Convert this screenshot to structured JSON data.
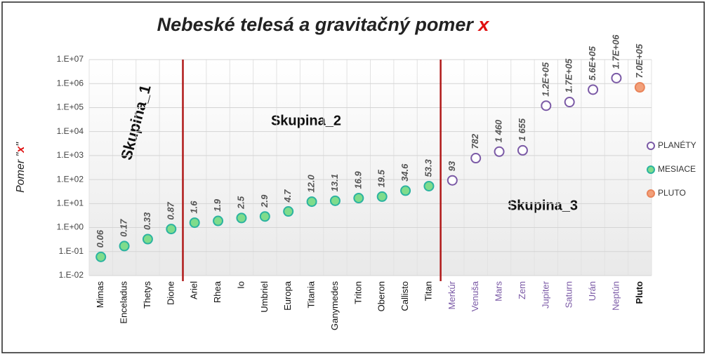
{
  "chart_data": {
    "type": "scatter",
    "title": [
      "Nebeské telesá a gravitačný pomer",
      "x"
    ],
    "y_label": [
      "Pomer \"",
      "x",
      "\""
    ],
    "log_scale": true,
    "grid": true,
    "legend": "right",
    "categories": [
      "Mimas",
      "Enceladus",
      "Thetys",
      "Dione",
      "Ariel",
      "Rhea",
      "Io",
      "Umbriel",
      "Europa",
      "Titania",
      "Ganymedes",
      "Triton",
      "Oberon",
      "Callisto",
      "Titan",
      "Merkúr",
      "Venuša",
      "Mars",
      "Zem",
      "Jupiter",
      "Saturn",
      "Urán",
      "Neptún",
      "Pluto"
    ],
    "ylim": [
      0.01,
      10000000
    ],
    "yticks": [
      {
        "value": 0.01,
        "label": "1.E-02"
      },
      {
        "value": 0.1,
        "label": "1.E-01"
      },
      {
        "value": 1,
        "label": "1.E+00"
      },
      {
        "value": 10,
        "label": "1.E+01"
      },
      {
        "value": 100,
        "label": "1.E+02"
      },
      {
        "value": 1000,
        "label": "1.E+03"
      },
      {
        "value": 10000,
        "label": "1.E+04"
      },
      {
        "value": 100000,
        "label": "1.E+05"
      },
      {
        "value": 1000000,
        "label": "1.E+06"
      },
      {
        "value": 10000000,
        "label": "1.E+07"
      }
    ],
    "series": [
      {
        "name": "PLANÉTY",
        "color": "#7b5aa6",
        "fill": "#ffffff",
        "values": [
          null,
          null,
          null,
          null,
          null,
          null,
          null,
          null,
          null,
          null,
          null,
          null,
          null,
          null,
          null,
          93,
          782,
          1460,
          1655,
          120000,
          170000,
          560000,
          1700000,
          null
        ],
        "value_labels": [
          null,
          null,
          null,
          null,
          null,
          null,
          null,
          null,
          null,
          null,
          null,
          null,
          null,
          null,
          null,
          "93",
          "782",
          "1 460",
          "1 655",
          "1.2E+05",
          "1.7E+05",
          "5.6E+05",
          "1.7E+06",
          null
        ]
      },
      {
        "name": "MESIACE",
        "color": "#2bb3a0",
        "fill": "#7fdc8c",
        "values": [
          0.06,
          0.17,
          0.33,
          0.87,
          1.6,
          1.9,
          2.5,
          2.9,
          4.7,
          12.0,
          13.1,
          16.9,
          19.5,
          34.6,
          53.3,
          null,
          null,
          null,
          null,
          null,
          null,
          null,
          null,
          null
        ],
        "value_labels": [
          "0.06",
          "0.17",
          "0.33",
          "0.87",
          "1.6",
          "1.9",
          "2.5",
          "2.9",
          "4.7",
          "12.0",
          "13.1",
          "16.9",
          "19.5",
          "34.6",
          "53.3",
          null,
          null,
          null,
          null,
          null,
          null,
          null,
          null,
          null
        ]
      },
      {
        "name": "PLUTO",
        "color": "#e9845a",
        "fill": "#f2a07a",
        "values": [
          null,
          null,
          null,
          null,
          null,
          null,
          null,
          null,
          null,
          null,
          null,
          null,
          null,
          null,
          null,
          null,
          null,
          null,
          null,
          null,
          null,
          null,
          null,
          700000
        ],
        "value_labels": [
          null,
          null,
          null,
          null,
          null,
          null,
          null,
          null,
          null,
          null,
          null,
          null,
          null,
          null,
          null,
          null,
          null,
          null,
          null,
          null,
          null,
          null,
          null,
          "7.0E+05"
        ]
      }
    ],
    "annotations": [
      "Skupina_1",
      "Skupina_2",
      "Skupina_3"
    ]
  }
}
